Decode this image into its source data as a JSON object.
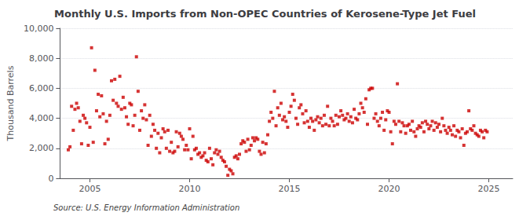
{
  "chart_data": {
    "type": "scatter",
    "title": "Monthly U.S. Imports from Non-OPEC Countries of Kerosene-Type Jet Fuel",
    "ylabel": "Thousand Barrels",
    "annotation": "Source: U.S. Energy Information Administration",
    "color": "#cc0000",
    "marker": "square",
    "grid": true,
    "xlim": [
      2003.5,
      2026.2
    ],
    "xticks": [
      2005,
      2010,
      2015,
      2020,
      2025
    ],
    "ylim": [
      0,
      10000
    ],
    "yticks": [
      0,
      {
        "value": 2000,
        "label": "2,000"
      },
      {
        "value": 4000,
        "label": "4,000"
      },
      {
        "value": 6000,
        "label": "6,000"
      },
      {
        "value": 8000,
        "label": "8,000"
      },
      {
        "value": 10000,
        "label": "10,000"
      }
    ],
    "x": [
      2003.917,
      2004.0,
      2004.083,
      2004.167,
      2004.25,
      2004.333,
      2004.417,
      2004.5,
      2004.583,
      2004.667,
      2004.75,
      2004.833,
      2004.917,
      2005.0,
      2005.083,
      2005.167,
      2005.25,
      2005.333,
      2005.417,
      2005.5,
      2005.583,
      2005.667,
      2005.75,
      2005.833,
      2005.917,
      2006.0,
      2006.083,
      2006.167,
      2006.25,
      2006.333,
      2006.417,
      2006.5,
      2006.583,
      2006.667,
      2006.75,
      2006.833,
      2006.917,
      2007.0,
      2007.083,
      2007.167,
      2007.25,
      2007.333,
      2007.417,
      2007.5,
      2007.583,
      2007.667,
      2007.75,
      2007.833,
      2007.917,
      2008.0,
      2008.083,
      2008.167,
      2008.25,
      2008.333,
      2008.417,
      2008.5,
      2008.583,
      2008.667,
      2008.75,
      2008.833,
      2008.917,
      2009.0,
      2009.083,
      2009.167,
      2009.25,
      2009.333,
      2009.417,
      2009.5,
      2009.583,
      2009.667,
      2009.75,
      2009.833,
      2009.917,
      2010.0,
      2010.083,
      2010.167,
      2010.25,
      2010.333,
      2010.417,
      2010.5,
      2010.583,
      2010.667,
      2010.75,
      2010.833,
      2010.917,
      2011.0,
      2011.083,
      2011.167,
      2011.25,
      2011.333,
      2011.417,
      2011.5,
      2011.583,
      2011.667,
      2011.75,
      2011.833,
      2011.917,
      2012.0,
      2012.083,
      2012.167,
      2012.25,
      2012.333,
      2012.417,
      2012.5,
      2012.583,
      2012.667,
      2012.75,
      2012.833,
      2012.917,
      2013.0,
      2013.083,
      2013.167,
      2013.25,
      2013.333,
      2013.417,
      2013.5,
      2013.583,
      2013.667,
      2013.75,
      2013.833,
      2013.917,
      2014.0,
      2014.083,
      2014.167,
      2014.25,
      2014.333,
      2014.417,
      2014.5,
      2014.583,
      2014.667,
      2014.75,
      2014.833,
      2014.917,
      2015.0,
      2015.083,
      2015.167,
      2015.25,
      2015.333,
      2015.417,
      2015.5,
      2015.583,
      2015.667,
      2015.75,
      2015.833,
      2015.917,
      2016.0,
      2016.083,
      2016.167,
      2016.25,
      2016.333,
      2016.417,
      2016.5,
      2016.583,
      2016.667,
      2016.75,
      2016.833,
      2016.917,
      2017.0,
      2017.083,
      2017.167,
      2017.25,
      2017.333,
      2017.417,
      2017.5,
      2017.583,
      2017.667,
      2017.75,
      2017.833,
      2017.917,
      2018.0,
      2018.083,
      2018.167,
      2018.25,
      2018.333,
      2018.417,
      2018.5,
      2018.583,
      2018.667,
      2018.75,
      2018.833,
      2018.917,
      2019.0,
      2019.083,
      2019.167,
      2019.25,
      2019.333,
      2019.417,
      2019.5,
      2019.583,
      2019.667,
      2019.75,
      2019.833,
      2019.917,
      2020.0,
      2020.083,
      2020.167,
      2020.25,
      2020.333,
      2020.417,
      2020.5,
      2020.583,
      2020.667,
      2020.75,
      2020.833,
      2020.917,
      2021.0,
      2021.083,
      2021.167,
      2021.25,
      2021.333,
      2021.417,
      2021.5,
      2021.583,
      2021.667,
      2021.75,
      2021.833,
      2021.917,
      2022.0,
      2022.083,
      2022.167,
      2022.25,
      2022.333,
      2022.417,
      2022.5,
      2022.583,
      2022.667,
      2022.75,
      2022.833,
      2022.917,
      2023.0,
      2023.083,
      2023.167,
      2023.25,
      2023.333,
      2023.417,
      2023.5,
      2023.583,
      2023.667,
      2023.75,
      2023.833,
      2023.917,
      2024.0,
      2024.083,
      2024.167,
      2024.25,
      2024.333,
      2024.417,
      2024.5,
      2024.583,
      2024.667,
      2024.75,
      2024.833,
      2024.917
    ],
    "values": [
      1900,
      2100,
      4800,
      3200,
      4600,
      5000,
      4700,
      3800,
      2300,
      4200,
      4000,
      3700,
      2200,
      3400,
      8700,
      2400,
      7200,
      4500,
      5600,
      4100,
      5500,
      4300,
      2300,
      3800,
      2600,
      4200,
      6500,
      5200,
      6600,
      5000,
      4800,
      6800,
      4600,
      5400,
      4700,
      4100,
      3600,
      5000,
      4900,
      3500,
      4200,
      8100,
      5800,
      3200,
      4500,
      4000,
      4900,
      3900,
      2200,
      4200,
      2800,
      3600,
      3200,
      2000,
      3000,
      1700,
      2700,
      3300,
      3100,
      2000,
      3200,
      1800,
      2400,
      1700,
      1800,
      3100,
      2100,
      3000,
      2800,
      2600,
      1900,
      2200,
      1900,
      3300,
      1300,
      2800,
      1900,
      2000,
      1600,
      1700,
      1400,
      1500,
      1700,
      1200,
      1100,
      2000,
      1300,
      900,
      1700,
      1900,
      1600,
      1800,
      1400,
      1200,
      1100,
      800,
      200,
      600,
      500,
      300,
      1400,
      1500,
      1300,
      1600,
      2300,
      2500,
      2400,
      1800,
      2600,
      1900,
      2200,
      2700,
      2500,
      2700,
      2600,
      1800,
      1600,
      2400,
      1700,
      2300,
      2900,
      3800,
      4400,
      4000,
      5800,
      3500,
      4700,
      4200,
      5000,
      3900,
      4100,
      3800,
      3400,
      4400,
      4800,
      5600,
      5200,
      4000,
      3600,
      4700,
      4900,
      4300,
      3700,
      4500,
      3800,
      3400,
      4000,
      3800,
      3200,
      3900,
      4100,
      3700,
      4000,
      3500,
      4200,
      3600,
      4800,
      3500,
      4000,
      3800,
      3500,
      4200,
      3600,
      4100,
      4500,
      4200,
      3900,
      4000,
      4300,
      3800,
      4100,
      3700,
      4600,
      4000,
      3900,
      4300,
      5000,
      4700,
      4400,
      5300,
      3600,
      5900,
      6000,
      6000,
      4000,
      4300,
      3800,
      3500,
      4000,
      4400,
      3200,
      3900,
      4500,
      4400,
      3100,
      2300,
      3800,
      3600,
      6300,
      3800,
      3100,
      3700,
      3500,
      3000,
      3500,
      3600,
      3200,
      3800,
      3100,
      2800,
      3300,
      3500,
      3400,
      3700,
      3100,
      3800,
      3600,
      3300,
      3500,
      3800,
      3200,
      3700,
      3400,
      3600,
      3100,
      4000,
      3500,
      3200,
      3000,
      3400,
      3200,
      2900,
      3500,
      2800,
      3200,
      3100,
      2700,
      3300,
      2200,
      3000,
      3100,
      4500,
      3300,
      3200,
      3500,
      3000,
      2900,
      2800,
      3200,
      3100,
      2700,
      3200,
      3100
    ]
  }
}
